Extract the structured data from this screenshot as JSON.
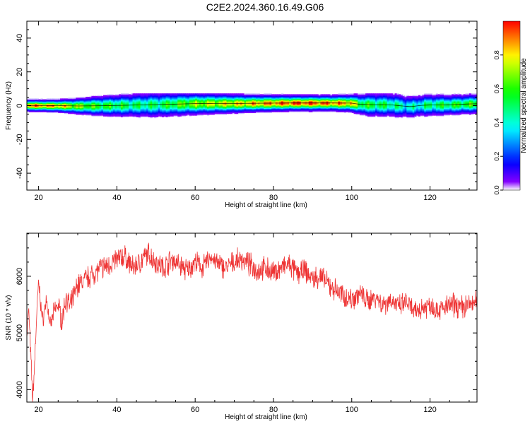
{
  "title": "C2E2.2024.360.16.49.G06",
  "chart_data": [
    {
      "type": "heatmap",
      "xlabel": "Height of straight line (km)",
      "ylabel": "Frequency (Hz)",
      "xlim": [
        17,
        132
      ],
      "ylim": [
        -50,
        50
      ],
      "xticks": [
        20,
        40,
        60,
        80,
        100,
        120
      ],
      "yticks": [
        -40,
        -20,
        0,
        20,
        40
      ],
      "colorbar": {
        "label": "Normalized spectral amplitude",
        "range": [
          0,
          1
        ],
        "ticks": [
          "0.0",
          "0.2",
          "0.4",
          "0.6",
          "0.8"
        ]
      },
      "ridge": {
        "x": [
          17,
          20,
          25,
          30,
          35,
          40,
          45,
          50,
          55,
          60,
          65,
          70,
          75,
          80,
          85,
          90,
          95,
          100,
          102,
          105,
          110,
          112,
          115,
          118,
          120,
          125,
          130,
          132
        ],
        "freq": [
          0.2,
          0.1,
          0.0,
          -0.2,
          -0.1,
          0.1,
          0.4,
          0.6,
          0.9,
          1.2,
          1.3,
          1.3,
          1.4,
          1.5,
          1.6,
          1.6,
          1.6,
          1.5,
          0.8,
          0.6,
          0.5,
          0.0,
          -0.6,
          0.2,
          0.4,
          0.5,
          1.0,
          1.1
        ],
        "amplitude": [
          0.95,
          0.9,
          0.85,
          0.7,
          0.6,
          0.55,
          0.5,
          0.5,
          0.6,
          0.7,
          0.75,
          0.8,
          0.85,
          0.9,
          0.95,
          0.95,
          0.9,
          0.85,
          0.6,
          0.55,
          0.5,
          0.45,
          0.4,
          0.45,
          0.5,
          0.55,
          0.6,
          0.6
        ],
        "width": [
          1.5,
          1.5,
          1.6,
          2.0,
          2.5,
          2.8,
          3.0,
          3.2,
          3.0,
          2.8,
          2.6,
          2.4,
          2.2,
          2.1,
          2.0,
          2.0,
          2.0,
          2.2,
          2.6,
          3.0,
          3.0,
          3.0,
          2.8,
          2.8,
          2.8,
          2.6,
          2.5,
          2.5
        ]
      }
    },
    {
      "type": "line",
      "xlabel": "Height of straight line (km)",
      "ylabel": "SNR (10 * v/v)",
      "xlim": [
        17,
        132
      ],
      "ylim": [
        3780,
        6760
      ],
      "xticks": [
        20,
        40,
        60,
        80,
        100,
        120
      ],
      "yticks": [
        4000,
        5000,
        6000
      ],
      "series": [
        {
          "color": "#ee3333",
          "x": [
            17,
            17.5,
            18,
            18.5,
            19,
            19.5,
            20,
            21,
            22,
            23,
            24,
            25,
            26,
            27,
            28,
            30,
            32,
            34,
            36,
            38,
            40,
            42,
            44,
            46,
            48,
            50,
            52,
            54,
            56,
            58,
            60,
            62,
            64,
            66,
            68,
            70,
            72,
            74,
            76,
            78,
            80,
            82,
            84,
            86,
            88,
            90,
            92,
            94,
            96,
            98,
            100,
            102,
            104,
            106,
            108,
            110,
            112,
            114,
            116,
            118,
            120,
            122,
            124,
            126,
            128,
            130,
            132
          ],
          "y": [
            5000,
            5400,
            4600,
            3800,
            4500,
            5300,
            5900,
            5200,
            5600,
            5100,
            5400,
            5500,
            5200,
            5650,
            5450,
            5850,
            5950,
            6050,
            6150,
            6200,
            6300,
            6350,
            6150,
            6250,
            6400,
            6250,
            6150,
            6300,
            6200,
            6100,
            6250,
            6150,
            6350,
            6200,
            6150,
            6250,
            6300,
            6200,
            6100,
            6150,
            6050,
            6150,
            6200,
            6050,
            6100,
            5950,
            6000,
            5850,
            5750,
            5650,
            5600,
            5700,
            5550,
            5650,
            5500,
            5600,
            5450,
            5550,
            5350,
            5450,
            5500,
            5400,
            5450,
            5500,
            5450,
            5500,
            5550
          ]
        }
      ]
    }
  ]
}
